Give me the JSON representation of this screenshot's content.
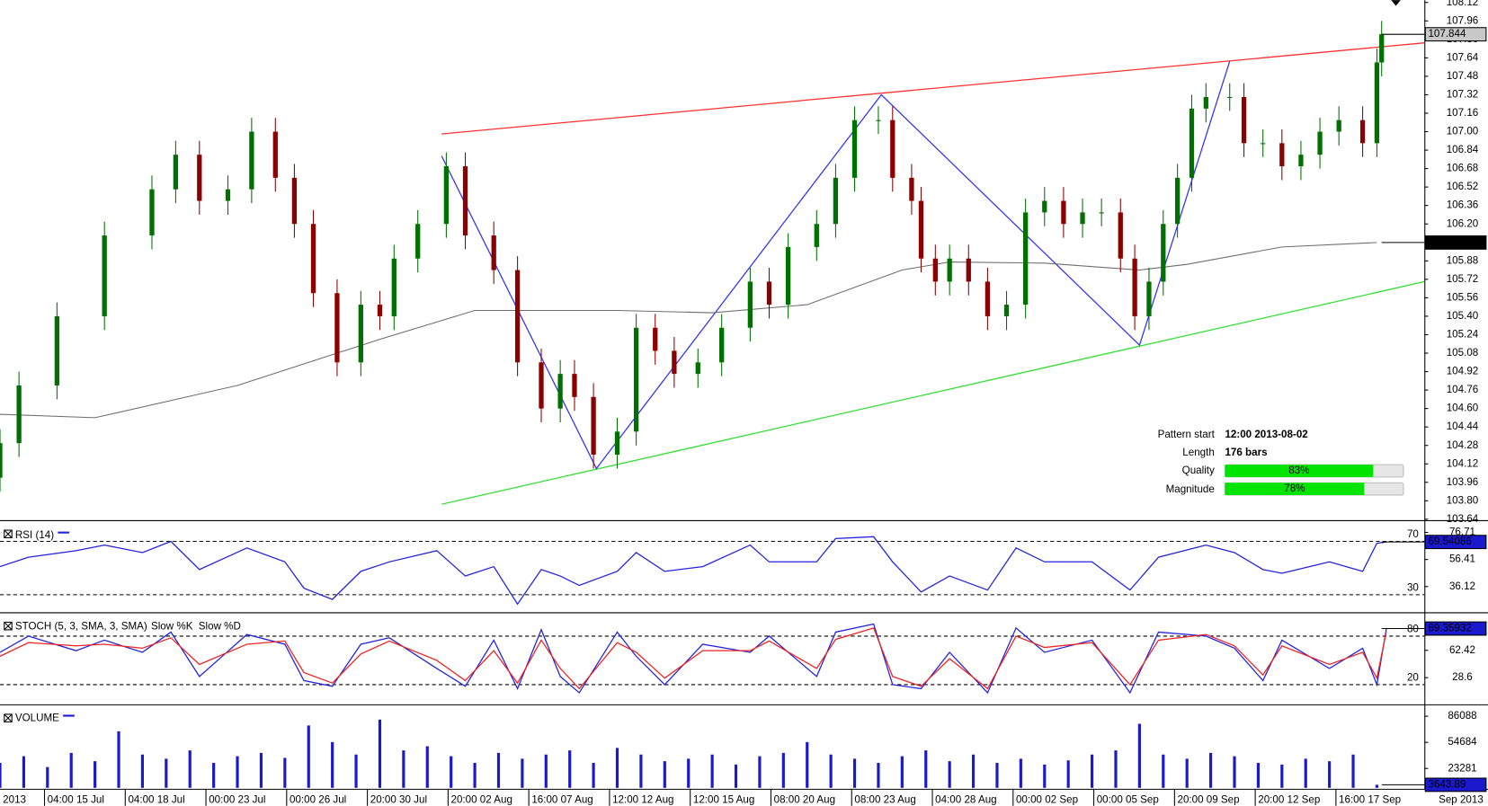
{
  "chart_data": [
    {
      "type": "candlestick",
      "x": [
        0,
        3.2,
        9.6,
        17.6,
        25.6,
        29.6,
        33.6,
        38.4,
        42.4,
        46.4,
        49.6,
        52.8,
        56.8,
        60.8,
        64,
        66.4,
        70.4,
        75.2,
        78.4,
        83.2,
        87.2,
        91.2,
        94.4,
        96.8,
        100,
        104,
        107.2,
        110.4,
        113.6,
        117.6,
        121.6,
        126.4,
        129.6,
        132.8,
        137.6,
        140.8,
        144,
        148,
        150.4,
        153.6,
        155.2,
        157.6,
        160,
        163.2,
        166.4,
        169.6,
        172.8,
        176,
        179.2,
        182.4,
        185.6,
        188.8,
        191.2,
        193.6,
        196,
        198.4,
        200.8,
        203.2,
        207.2,
        209.6,
        212.8,
        216,
        219.2,
        222.4,
        225.6,
        229.6,
        232,
        232.8
      ],
      "open": [
        104.0,
        104.3,
        104.8,
        105.4,
        106.1,
        106.5,
        106.8,
        106.4,
        106.5,
        107.0,
        106.6,
        106.2,
        105.6,
        105.0,
        105.5,
        105.4,
        105.9,
        106.2,
        106.7,
        106.1,
        105.8,
        105.0,
        104.6,
        104.9,
        104.7,
        104.2,
        104.4,
        105.3,
        105.1,
        104.9,
        105.0,
        105.3,
        105.7,
        105.5,
        106.0,
        106.2,
        106.6,
        107.1,
        107.1,
        106.6,
        106.4,
        105.9,
        105.7,
        105.9,
        105.7,
        105.4,
        105.5,
        106.3,
        106.4,
        106.2,
        106.3,
        106.3,
        105.9,
        105.4,
        105.7,
        106.2,
        106.6,
        107.2,
        107.3,
        107.3,
        106.9,
        106.9,
        106.7,
        106.8,
        107.0,
        107.1,
        106.9,
        107.6
      ],
      "high": [
        104.42,
        104.92,
        105.52,
        106.22,
        106.62,
        106.92,
        106.92,
        106.62,
        107.12,
        107.12,
        106.72,
        106.32,
        105.72,
        105.62,
        105.62,
        106.02,
        106.32,
        106.82,
        106.82,
        106.22,
        105.92,
        105.12,
        105.02,
        105.02,
        104.82,
        104.52,
        105.42,
        105.42,
        105.22,
        105.12,
        105.42,
        105.82,
        105.82,
        106.12,
        106.32,
        106.72,
        107.22,
        107.22,
        107.22,
        106.72,
        106.52,
        106.02,
        106.02,
        106.02,
        105.82,
        105.62,
        106.42,
        106.52,
        106.52,
        106.42,
        106.42,
        106.42,
        106.02,
        105.82,
        106.32,
        106.72,
        107.32,
        107.42,
        107.42,
        107.42,
        107.02,
        107.02,
        106.92,
        107.12,
        107.22,
        107.22,
        107.72,
        107.96
      ],
      "low": [
        103.88,
        104.18,
        104.68,
        105.28,
        105.98,
        106.38,
        106.28,
        106.28,
        106.38,
        106.48,
        106.08,
        105.48,
        104.88,
        104.88,
        105.28,
        105.28,
        105.78,
        106.08,
        105.98,
        105.68,
        104.88,
        104.48,
        104.48,
        104.58,
        104.08,
        104.08,
        104.28,
        104.98,
        104.78,
        104.78,
        104.88,
        105.18,
        105.38,
        105.38,
        105.88,
        106.08,
        106.48,
        106.98,
        106.48,
        106.28,
        105.78,
        105.58,
        105.58,
        105.58,
        105.28,
        105.28,
        105.38,
        106.18,
        106.08,
        106.08,
        106.18,
        105.78,
        105.28,
        105.28,
        105.58,
        106.08,
        106.48,
        107.08,
        107.18,
        106.78,
        106.78,
        106.58,
        106.58,
        106.68,
        106.88,
        106.78,
        106.78,
        107.48
      ],
      "close": [
        104.3,
        104.8,
        105.4,
        106.1,
        106.5,
        106.8,
        106.4,
        106.5,
        107.0,
        106.6,
        106.2,
        105.6,
        105.0,
        105.5,
        105.4,
        105.9,
        106.2,
        106.7,
        106.1,
        105.8,
        105.0,
        104.6,
        104.9,
        104.7,
        104.2,
        104.4,
        105.3,
        105.1,
        104.9,
        105.0,
        105.3,
        105.7,
        105.5,
        106.0,
        106.2,
        106.6,
        107.1,
        107.1,
        106.6,
        106.4,
        105.9,
        105.7,
        105.9,
        105.7,
        105.4,
        105.5,
        106.3,
        106.4,
        106.2,
        106.3,
        106.3,
        105.9,
        105.4,
        105.7,
        106.2,
        106.6,
        107.2,
        107.3,
        107.3,
        106.9,
        106.9,
        106.7,
        106.8,
        107.0,
        107.1,
        106.9,
        107.6,
        107.844
      ],
      "up_color": "#007000",
      "down_color": "#8b0000",
      "xlim": [
        0,
        240
      ],
      "ylim": [
        103.64,
        108.14
      ],
      "yticks": [
        108.12,
        107.96,
        {
          "value": 107.8,
          "label": "107.80"
        },
        107.64,
        107.48,
        107.32,
        107.16,
        {
          "value": 107,
          "label": "107.00"
        },
        106.84,
        106.68,
        106.52,
        106.36,
        {
          "value": 106.2,
          "label": "106.20"
        },
        106.04,
        105.88,
        105.72,
        105.56,
        {
          "value": 105.4,
          "label": "105.40"
        },
        105.24,
        105.08,
        104.92,
        104.76,
        {
          "value": 104.6,
          "label": "104.60"
        },
        104.44,
        104.28,
        104.12,
        103.96,
        {
          "value": 103.8,
          "label": "103.80"
        },
        103.64
      ],
      "overlays": [
        {
          "color": "#6e6e6e",
          "x": [
            0,
            16,
            40,
            64,
            80,
            104,
            120,
            136,
            152,
            160,
            176,
            192,
            200,
            216,
            232
          ],
          "values": [
            104.55,
            104.52,
            104.8,
            105.2,
            105.45,
            105.45,
            105.43,
            105.5,
            105.8,
            105.87,
            105.86,
            105.8,
            105.85,
            106.0,
            106.039
          ]
        }
      ],
      "lines": [
        {
          "color": "#ff3030",
          "x": [
            74.4,
            240
          ],
          "values": [
            106.98,
            107.77
          ]
        },
        {
          "color": "#30e030",
          "x": [
            74.4,
            240
          ],
          "values": [
            103.77,
            105.7
          ]
        },
        {
          "color": "#3333ee",
          "x": [
            74.4,
            100.5,
            148.5,
            192,
            207.2
          ],
          "values": [
            106.79,
            104.08,
            107.32,
            105.15,
            107.61
          ]
        }
      ]
    },
    {
      "type": "line",
      "title": "RSI (14)",
      "x": [
        0,
        4.8,
        12.8,
        17.6,
        24,
        28.8,
        33.6,
        41.6,
        48,
        51.2,
        56,
        60.8,
        65.6,
        73.6,
        78.4,
        83.2,
        87.2,
        91.2,
        94.4,
        97.6,
        104,
        107.2,
        112,
        118.4,
        126.4,
        129.6,
        137.6,
        140.8,
        147.2,
        150.4,
        155.2,
        160,
        166.4,
        171.2,
        176,
        184,
        190.4,
        195.2,
        203.2,
        208,
        212.8,
        216,
        224,
        229.6,
        232,
        233.6
      ],
      "series": [
        {
          "color": "#2222dd",
          "values": [
            51.1,
            58.1,
            63.0,
            67.2,
            61.6,
            70,
            48.9,
            65.1,
            54.6,
            34.9,
            26.5,
            47.5,
            54.6,
            63.0,
            44.0,
            51.1,
            23.0,
            48.9,
            44.0,
            37.0,
            47.5,
            61.6,
            47.5,
            51.1,
            67.2,
            54.6,
            54.6,
            72.1,
            73.5,
            54.6,
            32.1,
            44.0,
            33.5,
            65.1,
            54.6,
            54.6,
            33.5,
            58.1,
            67.2,
            61.6,
            48.9,
            46.1,
            54.6,
            47.5,
            68.6,
            69.54086
          ]
        }
      ],
      "xlim": [
        0,
        240
      ],
      "ylim": [
        19,
        83
      ],
      "yticks": [
        36.12,
        56.41,
        76.71
      ],
      "levels": [
        30,
        70
      ]
    },
    {
      "type": "line",
      "title": "STOCH (5, 3, SMA, 3, SMA)",
      "x": [
        0,
        4.8,
        12.8,
        17.6,
        24,
        28.8,
        33.6,
        41.6,
        48,
        51.2,
        56,
        60.8,
        65.6,
        73.6,
        78.4,
        83.2,
        87.2,
        91.2,
        94.4,
        97.6,
        104,
        107.2,
        112,
        118.4,
        126.4,
        129.6,
        137.6,
        140.8,
        147.2,
        150.4,
        155.2,
        160,
        166.4,
        171.2,
        176,
        184,
        190.4,
        195.2,
        203.2,
        208,
        212.8,
        216,
        224,
        229.6,
        232,
        233.6
      ],
      "series": [
        {
          "name": "Slow %K",
          "color": "#2222dd",
          "values": [
            60,
            80,
            62,
            75,
            60,
            85,
            30,
            82,
            70,
            25,
            18,
            70,
            78,
            40,
            18,
            75,
            15,
            88,
            30,
            10,
            85,
            55,
            20,
            70,
            60,
            80,
            30,
            85,
            95,
            20,
            15,
            60,
            10,
            90,
            60,
            75,
            10,
            85,
            80,
            65,
            25,
            75,
            40,
            65,
            20,
            89.35932
          ]
        },
        {
          "name": "Slow %D",
          "color": "#ee2222",
          "values": [
            55,
            72,
            68,
            70,
            65,
            78,
            45,
            70,
            74,
            35,
            22,
            58,
            74,
            50,
            25,
            62,
            22,
            75,
            40,
            15,
            72,
            60,
            28,
            62,
            62,
            74,
            40,
            76,
            90,
            30,
            18,
            52,
            15,
            80,
            66,
            72,
            20,
            75,
            82,
            68,
            32,
            68,
            45,
            60,
            28,
            86
          ]
        }
      ],
      "xlim": [
        0,
        240
      ],
      "ylim": [
        -2,
        106
      ],
      "yticks": [
        28.6,
        62.42
      ],
      "levels": [
        20,
        80
      ]
    },
    {
      "type": "bar",
      "title": "VOLUME",
      "color": "#1a1acc",
      "x": [
        0,
        4,
        8,
        12,
        16,
        20,
        24,
        28,
        32,
        36,
        40,
        44,
        48,
        52,
        56,
        60,
        64,
        68,
        72,
        76,
        80,
        84,
        88,
        92,
        96,
        100,
        104,
        108,
        112,
        116,
        120,
        124,
        128,
        132,
        136,
        140,
        144,
        148,
        152,
        156,
        160,
        164,
        168,
        172,
        176,
        180,
        184,
        188,
        192,
        196,
        200,
        204,
        208,
        212,
        216,
        220,
        224,
        228,
        232
      ],
      "values": [
        30000,
        38000,
        25000,
        42000,
        32000,
        68000,
        40000,
        35000,
        45000,
        30000,
        38000,
        42000,
        36000,
        75000,
        55000,
        40000,
        82000,
        45000,
        50000,
        38000,
        30000,
        42000,
        35000,
        40000,
        45000,
        30000,
        48000,
        40000,
        32000,
        35000,
        40000,
        28000,
        38000,
        42000,
        55000,
        40000,
        35000,
        30000,
        38000,
        45000,
        32000,
        40000,
        30000,
        35000,
        28000,
        33000,
        40000,
        45000,
        77000,
        40000,
        35000,
        42000,
        38000,
        30000,
        28000,
        35000,
        32000,
        40000,
        3643.89
      ],
      "xlim": [
        0,
        240
      ],
      "ylim": [
        0,
        97000
      ],
      "yticks": [
        23281,
        54684,
        86088
      ],
      "x_start_label": "2013",
      "x_end_label": "Sep 2013",
      "xticks": [
        {
          "value": 7.5,
          "label": "04:00 15 Jul"
        },
        {
          "value": 21.1,
          "label": "04:00 18 Jul"
        },
        {
          "value": 34.7,
          "label": "00:00 23 Jul"
        },
        {
          "value": 48.3,
          "label": "00:00 26 Jul"
        },
        {
          "value": 61.9,
          "label": "20:00 30 Jul"
        },
        {
          "value": 75.5,
          "label": "20:00 02 Aug"
        },
        {
          "value": 89.1,
          "label": "16:00 07 Aug"
        },
        {
          "value": 102.7,
          "label": "12:00 12 Aug"
        },
        {
          "value": 116.3,
          "label": "12:00 15 Aug"
        },
        {
          "value": 129.9,
          "label": "08:00 20 Aug"
        },
        {
          "value": 143.5,
          "label": "08:00 23 Aug"
        },
        {
          "value": 157.1,
          "label": "04:00 28 Aug"
        },
        {
          "value": 170.7,
          "label": "00:00 02 Sep"
        },
        {
          "value": 184.3,
          "label": "00:00 05 Sep"
        },
        {
          "value": 197.9,
          "label": "20:00 09 Sep"
        },
        {
          "value": 211.5,
          "label": "20:00 12 Sep"
        },
        {
          "value": 225.1,
          "label": "16:00 17 Sep"
        }
      ]
    }
  ],
  "pattern": {
    "start": {
      "label": "Pattern start",
      "value": "12:00 2013-08-02"
    },
    "length": {
      "label": "Length",
      "value": "176 bars"
    },
    "quality": {
      "label": "Quality",
      "value": 83,
      "value_label": "83%"
    },
    "magnitude": {
      "label": "Magnitude",
      "value": 78,
      "value_label": "78%"
    }
  }
}
